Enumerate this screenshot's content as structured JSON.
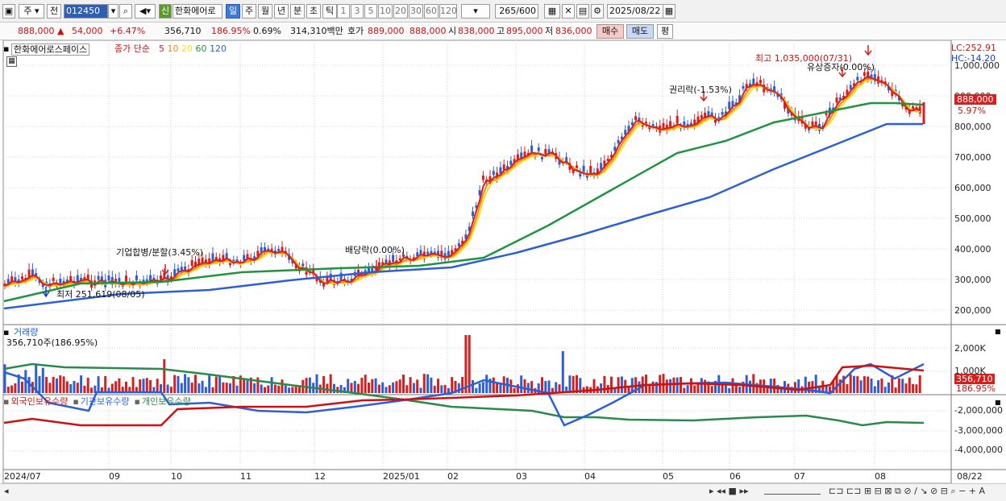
{
  "toolbar": {
    "period": "주",
    "compare": "전",
    "code": "012450",
    "stock_short": "한화에어로",
    "badge": "신",
    "tabs": [
      "일",
      "주",
      "월",
      "년",
      "분",
      "초",
      "틱"
    ],
    "active_tab": "일",
    "intervals": [
      "1",
      "3",
      "5",
      "10",
      "20",
      "30",
      "60",
      "120"
    ],
    "count": "265",
    "count_total": "/600",
    "date": "2025/08/22"
  },
  "quote": {
    "price": "888,000",
    "change": "54,000",
    "change_pct": "+6.47%",
    "volume": "356,710",
    "volume_pct": "186.95%",
    "turnover_pct": "0.69%",
    "amount": "314,310백만",
    "hoga_label": "호가",
    "ask": "889,000",
    "bid": "888,000",
    "open_label": "시",
    "open": "838,000",
    "high_label": "고",
    "high": "895,000",
    "low_label": "저",
    "low": "836,000",
    "buy_label": "매수",
    "sell_label": "매도",
    "eval_label": "평"
  },
  "price_panel": {
    "name": "한화에어로스페이스",
    "ma_label": "종가 단순",
    "ma": [
      {
        "period": "5",
        "color": "#d42020"
      },
      {
        "period": "10",
        "color": "#f08a1a"
      },
      {
        "period": "20",
        "color": "#f2e01a"
      },
      {
        "period": "60",
        "color": "#1f9440"
      },
      {
        "period": "120",
        "color": "#2c5fd6"
      }
    ],
    "lc": "LC:252.91",
    "hc": "HC:-14.20",
    "price_tag": "888,000",
    "pct_tag": "5.97%",
    "y_ticks": [
      "1,000,000",
      "900,000",
      "800,000",
      "700,000",
      "600,000",
      "500,000",
      "400,000",
      "300,000",
      "200,000"
    ],
    "annotations": {
      "high": "최고 1,035,000(07/31)",
      "rights": "유상증자(0.00%)",
      "ex_right": "권리락(-1.53%)",
      "merger": "기업합병/분할(3.45%)",
      "dividend": "배당락(0.00%)",
      "low": "최저 251,619(08/05)"
    }
  },
  "volume_panel": {
    "title": "거래량",
    "value": "356,710주(186.95%)",
    "y_ticks": [
      "2,000K",
      "1,000K"
    ],
    "tag": "356,710",
    "tag_pct": "186.95%"
  },
  "holder_panel": {
    "series": [
      {
        "name": "외국인보유수량",
        "color": "#d01010"
      },
      {
        "name": "기관보유수량",
        "color": "#2c5fd6"
      },
      {
        "name": "개인보유수량",
        "color": "#2a8a4a"
      }
    ],
    "y_ticks": [
      "-2,000,000",
      "-3,000,000",
      "-4,000,000"
    ]
  },
  "x_labels": [
    "2024/07",
    "09",
    "10",
    "11",
    "12",
    "2025/01",
    "02",
    "03",
    "04",
    "05",
    "06",
    "07",
    "08",
    "08/22"
  ],
  "colors": {
    "up": "#d42020",
    "down": "#2c5fd6"
  }
}
